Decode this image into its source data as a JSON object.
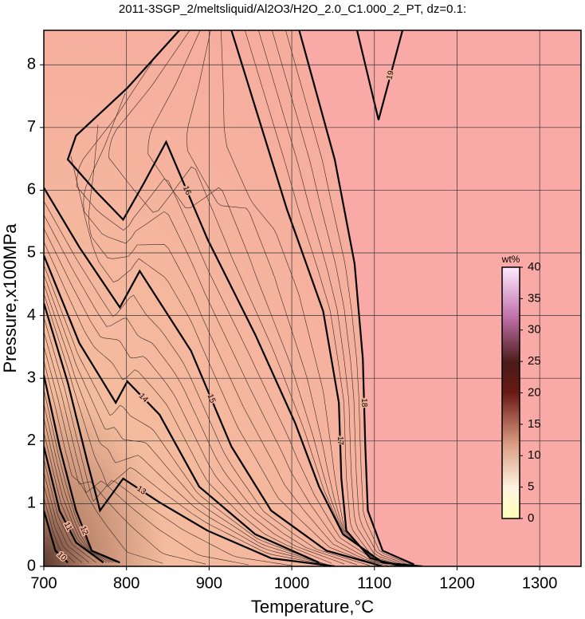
{
  "chart_data": {
    "type": "contour",
    "title": "2011-3SGP_2/meltsliquid/Al2O3/H2O_2.0_C1.000_2_PT, dz=0.1:",
    "x_label": "Temperature,°C",
    "y_label": "Pressure,x100MPa",
    "xlim": [
      700,
      1350
    ],
    "xticks": [
      700,
      800,
      900,
      1000,
      1100,
      1200,
      1300
    ],
    "ylim": [
      0,
      8.55
    ],
    "yticks": [
      0,
      1,
      2,
      3,
      4,
      5,
      6,
      7,
      8
    ],
    "grid": true,
    "contours": [
      {
        "level": 10,
        "x": [
          700,
          714,
          729
        ],
        "y": [
          0.89,
          0.25,
          0.06
        ]
      },
      {
        "level": 11,
        "x": [
          700,
          719,
          739,
          772
        ],
        "y": [
          1.91,
          0.89,
          0.38,
          0.06
        ]
      },
      {
        "level": 12,
        "x": [
          700,
          719,
          739,
          758,
          792
        ],
        "y": [
          3.05,
          1.91,
          0.89,
          0.25,
          0.06
        ]
      },
      {
        "level": 13,
        "x": [
          700,
          729,
          753,
          768,
          796,
          840,
          898,
          975,
          1052
        ],
        "y": [
          4.2,
          2.93,
          1.65,
          0.89,
          1.4,
          1.02,
          0.57,
          0.13,
          0
        ]
      },
      {
        "level": 14,
        "x": [
          700,
          743,
          787,
          801,
          840,
          888,
          956,
          1033
        ],
        "y": [
          4.96,
          3.56,
          2.61,
          2.95,
          2.42,
          1.27,
          0.51,
          0.06
        ]
      },
      {
        "level": 15,
        "x": [
          700,
          743,
          792,
          816,
          878,
          927,
          975,
          1042,
          1110
        ],
        "y": [
          6.04,
          5.09,
          4.13,
          4.71,
          3.44,
          1.91,
          0.89,
          0.25,
          0
        ]
      },
      {
        "level": 16,
        "x": [
          864,
          801,
          739,
          729,
          763,
          796,
          821,
          848,
          898,
          956,
          1004,
          1033,
          1062,
          1110,
          1158
        ],
        "y": [
          8.55,
          7.63,
          6.87,
          6.49,
          5.98,
          5.53,
          6.11,
          6.77,
          5.22,
          3.69,
          2.29,
          1.27,
          0.51,
          0.06,
          0
        ]
      },
      {
        "level": 17,
        "x": [
          927,
          994,
          1038,
          1057,
          1060,
          1066,
          1095,
          1134
        ],
        "y": [
          8.55,
          5.7,
          4.07,
          2.61,
          1.4,
          0.57,
          0.13,
          0
        ]
      },
      {
        "level": 18,
        "x": [
          1009,
          1052,
          1076,
          1086,
          1089,
          1092,
          1110,
          1148
        ],
        "y": [
          8.55,
          6.49,
          4.83,
          3.31,
          1.91,
          0.89,
          0.25,
          0.03
        ]
      },
      {
        "level": 19,
        "x": [
          1079,
          1105,
          1134
        ],
        "y": [
          8.55,
          7.12,
          8.55
        ]
      }
    ],
    "colorbar": {
      "label": "wt%",
      "lim": [
        0,
        40
      ],
      "ticks": [
        0,
        5,
        10,
        15,
        20,
        25,
        30,
        35,
        40
      ]
    }
  }
}
